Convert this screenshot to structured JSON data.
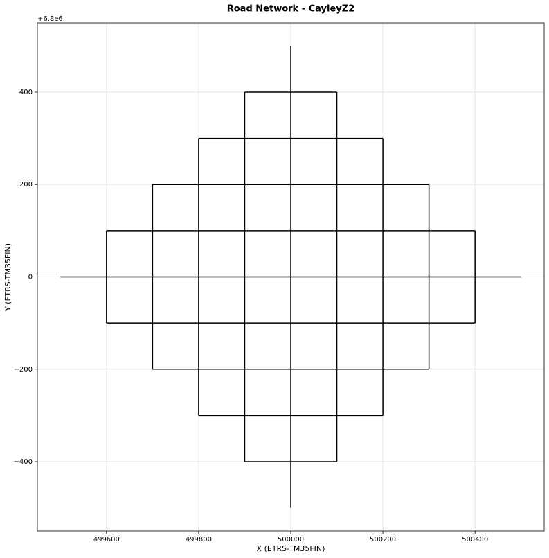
{
  "chart_data": {
    "type": "line",
    "title": "Road Network - CayleyZ2",
    "x_label": "X (ETRS-TM35FIN)",
    "y_label": "Y (ETRS-TM35FIN)",
    "y_offset": "+6.8e6",
    "color": "#000000",
    "grid": true,
    "xlim": [
      499450,
      500550
    ],
    "ylim": [
      -550,
      550
    ],
    "xticks": [
      499600,
      499800,
      500000,
      500200,
      500400
    ],
    "yticks": [
      {
        "value": -400,
        "label": "−400"
      },
      {
        "value": -200,
        "label": "−200"
      },
      0,
      200,
      400
    ],
    "lines": [
      {
        "x": [
          499900,
          500100
        ],
        "y": [
          400,
          400
        ]
      },
      {
        "x": [
          499800,
          500200
        ],
        "y": [
          300,
          300
        ]
      },
      {
        "x": [
          499700,
          500300
        ],
        "y": [
          200,
          200
        ]
      },
      {
        "x": [
          499600,
          500400
        ],
        "y": [
          100,
          100
        ]
      },
      {
        "x": [
          499500,
          500500
        ],
        "y": [
          0,
          0
        ]
      },
      {
        "x": [
          499600,
          500400
        ],
        "y": [
          -100,
          -100
        ]
      },
      {
        "x": [
          499700,
          500300
        ],
        "y": [
          -200,
          -200
        ]
      },
      {
        "x": [
          499800,
          500200
        ],
        "y": [
          -300,
          -300
        ]
      },
      {
        "x": [
          499900,
          500100
        ],
        "y": [
          -400,
          -400
        ]
      },
      {
        "x": [
          500000,
          500000
        ],
        "y": [
          -500,
          500
        ]
      },
      {
        "x": [
          499900,
          499900
        ],
        "y": [
          -400,
          400
        ]
      },
      {
        "x": [
          500100,
          500100
        ],
        "y": [
          -400,
          400
        ]
      },
      {
        "x": [
          499800,
          499800
        ],
        "y": [
          -300,
          300
        ]
      },
      {
        "x": [
          500200,
          500200
        ],
        "y": [
          -300,
          300
        ]
      },
      {
        "x": [
          499700,
          499700
        ],
        "y": [
          -200,
          200
        ]
      },
      {
        "x": [
          500300,
          500300
        ],
        "y": [
          -200,
          200
        ]
      },
      {
        "x": [
          499600,
          499600
        ],
        "y": [
          -100,
          100
        ]
      },
      {
        "x": [
          500400,
          500400
        ],
        "y": [
          -100,
          100
        ]
      }
    ]
  }
}
